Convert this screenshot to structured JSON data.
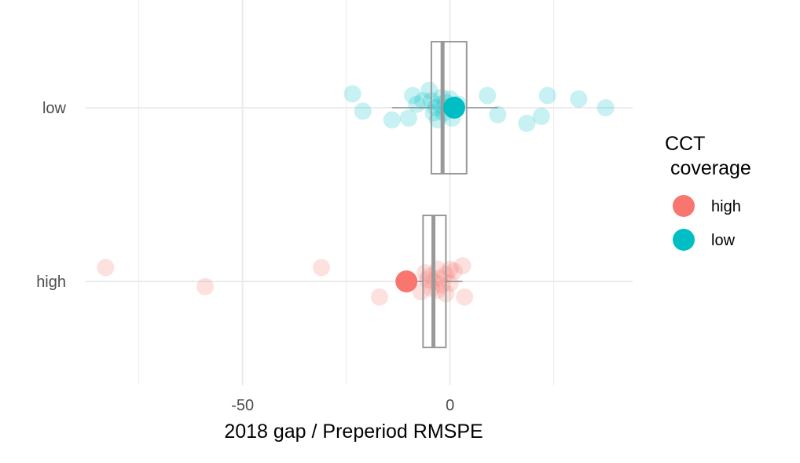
{
  "chart_data": {
    "type": "scatter",
    "xlabel": "2018 gap / Preperiod RMSPE",
    "ylabel": "",
    "xlim": [
      -88,
      44
    ],
    "x_ticks": [
      -50,
      0
    ],
    "x_minor_grid": [
      -75,
      -25,
      25
    ],
    "categories": [
      "high",
      "low"
    ],
    "grid": true,
    "legend": {
      "title_lines": [
        "CCT",
        " coverage"
      ],
      "position": "right",
      "entries": [
        {
          "label": "high",
          "color": "#F8766D"
        },
        {
          "label": "low",
          "color": "#00BFC4"
        }
      ]
    },
    "series": [
      {
        "name": "high",
        "category": "high",
        "color": "#F8766D",
        "highlight": -10.5,
        "points": [
          {
            "x": -83,
            "j": 0.08
          },
          {
            "x": -59,
            "j": -0.03
          },
          {
            "x": -31,
            "j": 0.08
          },
          {
            "x": -17,
            "j": -0.09
          },
          {
            "x": -7,
            "j": -0.06
          },
          {
            "x": -6,
            "j": 0.05
          },
          {
            "x": -5,
            "j": 0.03
          },
          {
            "x": -4,
            "j": 0.0
          },
          {
            "x": -3,
            "j": -0.05
          },
          {
            "x": -3,
            "j": 0.07
          },
          {
            "x": -2,
            "j": -0.02
          },
          {
            "x": -1,
            "j": 0.04
          },
          {
            "x": -1,
            "j": -0.07
          },
          {
            "x": 0,
            "j": 0.07
          },
          {
            "x": 0,
            "j": -0.01
          },
          {
            "x": 1,
            "j": 0.06
          },
          {
            "x": -4.5,
            "j": -0.04
          },
          {
            "x": -2.5,
            "j": 0.02
          },
          {
            "x": 3,
            "j": 0.09
          },
          {
            "x": 3.5,
            "j": -0.09
          },
          {
            "x": -5.5,
            "j": 0.01
          }
        ],
        "box": {
          "q1": -6.5,
          "median": -4,
          "q3": -1,
          "whisker_low": -10,
          "whisker_high": 3,
          "half_height": 0.38
        }
      },
      {
        "name": "low",
        "category": "low",
        "color": "#00BFC4",
        "highlight": 1,
        "points": [
          {
            "x": -23.5,
            "j": 0.08
          },
          {
            "x": -21,
            "j": -0.02
          },
          {
            "x": -14,
            "j": -0.07
          },
          {
            "x": -10,
            "j": -0.06
          },
          {
            "x": -9,
            "j": 0.07
          },
          {
            "x": -6.5,
            "j": 0.04
          },
          {
            "x": -5,
            "j": 0.1
          },
          {
            "x": -4.5,
            "j": 0.04
          },
          {
            "x": -4,
            "j": -0.03
          },
          {
            "x": -3.5,
            "j": 0.0
          },
          {
            "x": -3,
            "j": -0.07
          },
          {
            "x": -2,
            "j": 0.06
          },
          {
            "x": -1.5,
            "j": -0.03
          },
          {
            "x": -1,
            "j": 0.03
          },
          {
            "x": 0,
            "j": 0.05
          },
          {
            "x": 0.5,
            "j": -0.06
          },
          {
            "x": 9,
            "j": 0.07
          },
          {
            "x": 11.5,
            "j": -0.04
          },
          {
            "x": 18.5,
            "j": -0.09
          },
          {
            "x": 22,
            "j": -0.05
          },
          {
            "x": 23.5,
            "j": 0.07
          },
          {
            "x": 31,
            "j": 0.05
          },
          {
            "x": 37.5,
            "j": 0.0
          },
          {
            "x": -8,
            "j": 0.02
          },
          {
            "x": -2.5,
            "j": 0.02
          },
          {
            "x": 2,
            "j": 0.02
          }
        ],
        "box": {
          "q1": -4.5,
          "median": -1.8,
          "q3": 4,
          "whisker_low": -14,
          "whisker_high": 11.5,
          "half_height": 0.38
        }
      }
    ]
  }
}
